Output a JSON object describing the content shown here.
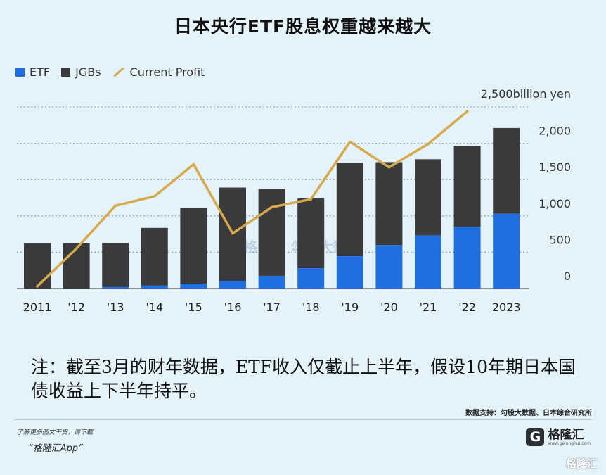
{
  "title": "日本央行ETF股息权重越来越大",
  "legend": [
    {
      "label": "ETF",
      "color": "#1f6fe0",
      "kind": "square"
    },
    {
      "label": "JGBs",
      "color": "#3a3a3c",
      "kind": "square"
    },
    {
      "label": "Current Profit",
      "color": "#d7a94a",
      "kind": "line"
    }
  ],
  "chart_data": {
    "type": "bar",
    "stacked": true,
    "categories": [
      "2011",
      "'12",
      "'13",
      "'14",
      "'15",
      "'16",
      "'17",
      "'18",
      "'19",
      "'20",
      "'21",
      "'22",
      "2023"
    ],
    "series": [
      {
        "name": "ETF",
        "values": [
          0,
          0,
          20,
          40,
          65,
          100,
          175,
          280,
          445,
          600,
          730,
          850,
          1030
        ]
      },
      {
        "name": "JGBs",
        "values": [
          625,
          620,
          610,
          795,
          1040,
          1290,
          1195,
          960,
          1285,
          1140,
          1050,
          1110,
          1180
        ]
      },
      {
        "name": "Current Profit",
        "type": "line",
        "values": [
          30,
          550,
          1140,
          1270,
          1710,
          760,
          1120,
          1230,
          2020,
          1670,
          1990,
          2440,
          null
        ]
      }
    ],
    "y_unit_label": "2,500billion yen",
    "ytick_labels": [
      "0",
      "500",
      "1,000",
      "1,500",
      "2,000"
    ],
    "ytick_values": [
      0,
      500,
      1000,
      1500,
      2000
    ],
    "ylim": [
      0,
      2500
    ],
    "grid": true,
    "legend_position": "top-left"
  },
  "note": "注：截至3月的财年数据，ETF收入仅截止上半年，假设10年期日本国债收益上下半年持平。",
  "source": "数据支持：勾股大数据、日本综合研究所",
  "promo_line1": "了解更多图文干货，请下载",
  "promo_line2": "“格隆汇App”",
  "brand": {
    "icon": "G",
    "name": "格隆汇",
    "url": "www.gelonghui.com"
  },
  "watermark_center": "格隆汇  勾股大数据",
  "watermark_bottom": "格隆汇"
}
